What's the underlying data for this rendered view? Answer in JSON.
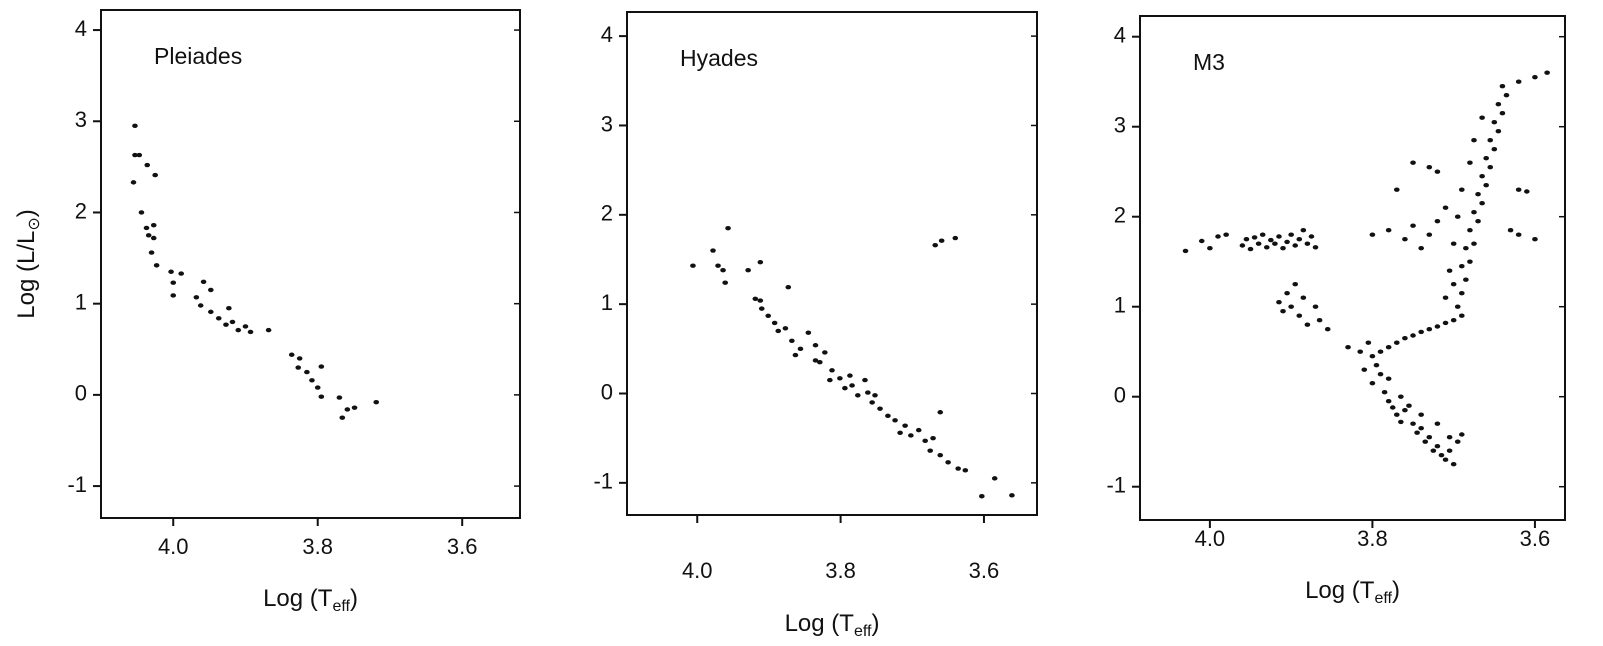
{
  "chart_data": [
    {
      "type": "scatter",
      "title": "Pleiades",
      "x_label": [
        "Log (T",
        "eff",
        ")"
      ],
      "y_label": [
        "Log (L/L",
        "⊙",
        ")"
      ],
      "xlim": [
        4.1,
        3.52
      ],
      "ylim": [
        -1.35,
        4.22
      ],
      "xticks": [
        {
          "value": 4.0,
          "label": "4.0"
        },
        {
          "value": 3.8,
          "label": "3.8"
        },
        {
          "value": 3.6,
          "label": "3.6"
        }
      ],
      "yticks": [
        4,
        3,
        2,
        1,
        0,
        -1
      ],
      "color": "#111111",
      "x": [
        4.053,
        4.053,
        4.047,
        4.055,
        4.036,
        4.025,
        4.044,
        4.037,
        4.027,
        4.034,
        4.027,
        4.03,
        4.023,
        4.003,
        3.989,
        4.0,
        4.0,
        3.958,
        3.948,
        3.968,
        3.962,
        3.923,
        3.948,
        3.937,
        3.927,
        3.918,
        3.91,
        3.9,
        3.893,
        3.868,
        3.836,
        3.825,
        3.827,
        3.815,
        3.795,
        3.808,
        3.8,
        3.795,
        3.77,
        3.759,
        3.749,
        3.766,
        3.719
      ],
      "y": [
        2.95,
        2.63,
        2.63,
        2.33,
        2.52,
        2.41,
        2.0,
        1.83,
        1.86,
        1.75,
        1.72,
        1.56,
        1.42,
        1.35,
        1.33,
        1.23,
        1.09,
        1.24,
        1.15,
        1.07,
        0.98,
        0.95,
        0.91,
        0.84,
        0.77,
        0.8,
        0.71,
        0.75,
        0.69,
        0.71,
        0.44,
        0.4,
        0.3,
        0.25,
        0.31,
        0.16,
        0.08,
        -0.02,
        -0.03,
        -0.16,
        -0.14,
        -0.25,
        -0.08
      ]
    },
    {
      "type": "scatter",
      "title": "Hyades",
      "x_label": [
        "Log (T",
        "eff",
        ")"
      ],
      "xlim": [
        4.098,
        3.526
      ],
      "ylim": [
        -1.36,
        4.27
      ],
      "xticks": [
        {
          "value": 4.0,
          "label": "4.0"
        },
        {
          "value": 3.8,
          "label": "3.8"
        },
        {
          "value": 3.6,
          "label": "3.6"
        }
      ],
      "yticks": [
        4,
        3,
        2,
        1,
        0,
        -1
      ],
      "color": "#111111",
      "x": [
        4.006,
        3.978,
        3.971,
        3.964,
        3.957,
        3.961,
        3.929,
        3.912,
        3.873,
        3.919,
        3.91,
        3.901,
        3.892,
        3.877,
        3.868,
        3.856,
        3.845,
        3.835,
        3.822,
        3.829,
        3.812,
        3.801,
        3.794,
        3.784,
        3.776,
        3.766,
        3.762,
        3.756,
        3.745,
        3.734,
        3.724,
        3.71,
        3.702,
        3.691,
        3.682,
        3.675,
        3.661,
        3.65,
        3.636,
        3.626,
        3.661,
        3.671,
        3.668,
        3.659,
        3.64,
        3.603,
        3.585,
        3.561,
        3.912,
        3.887,
        3.863,
        3.835,
        3.815,
        3.787,
        3.752,
        3.717
      ],
      "y": [
        1.43,
        1.6,
        1.43,
        1.38,
        1.85,
        1.24,
        1.38,
        1.47,
        1.19,
        1.06,
        0.95,
        0.87,
        0.79,
        0.73,
        0.59,
        0.5,
        0.68,
        0.54,
        0.46,
        0.35,
        0.26,
        0.17,
        0.06,
        0.09,
        -0.02,
        0.15,
        0.01,
        -0.1,
        -0.17,
        -0.25,
        -0.3,
        -0.36,
        -0.47,
        -0.41,
        -0.53,
        -0.64,
        -0.69,
        -0.77,
        -0.84,
        -0.86,
        -0.21,
        -0.5,
        1.66,
        1.71,
        1.74,
        -1.15,
        -0.95,
        -1.14,
        1.04,
        0.7,
        0.43,
        0.37,
        0.15,
        0.2,
        -0.02,
        -0.44
      ]
    },
    {
      "type": "scatter",
      "title": "M3",
      "x_label": [
        "Log (T",
        "eff",
        ")"
      ],
      "xlim": [
        4.086,
        3.563
      ],
      "ylim": [
        -1.37,
        4.23
      ],
      "xticks": [
        {
          "value": 4.0,
          "label": "4.0"
        },
        {
          "value": 3.8,
          "label": "3.8"
        },
        {
          "value": 3.6,
          "label": "3.6"
        }
      ],
      "yticks": [
        4,
        3,
        2,
        1,
        0,
        -1
      ],
      "color": "#111111",
      "x": [
        4.03,
        4.01,
        4.0,
        3.99,
        3.98,
        3.96,
        3.955,
        3.95,
        3.945,
        3.94,
        3.935,
        3.93,
        3.925,
        3.92,
        3.915,
        3.91,
        3.905,
        3.9,
        3.895,
        3.89,
        3.885,
        3.88,
        3.875,
        3.87,
        3.915,
        3.91,
        3.905,
        3.9,
        3.895,
        3.89,
        3.885,
        3.88,
        3.87,
        3.865,
        3.855,
        3.8,
        3.795,
        3.79,
        3.8,
        3.785,
        3.78,
        3.775,
        3.77,
        3.765,
        3.76,
        3.75,
        3.745,
        3.74,
        3.735,
        3.73,
        3.725,
        3.72,
        3.715,
        3.71,
        3.705,
        3.7,
        3.695,
        3.81,
        3.815,
        3.78,
        3.765,
        3.755,
        3.74,
        3.72,
        3.705,
        3.69,
        3.83,
        3.805,
        3.79,
        3.78,
        3.77,
        3.76,
        3.75,
        3.74,
        3.73,
        3.72,
        3.71,
        3.7,
        3.69,
        3.695,
        3.69,
        3.7,
        3.685,
        3.69,
        3.68,
        3.685,
        3.675,
        3.68,
        3.67,
        3.675,
        3.665,
        3.67,
        3.66,
        3.665,
        3.655,
        3.66,
        3.65,
        3.655,
        3.645,
        3.65,
        3.64,
        3.645,
        3.635,
        3.64,
        3.62,
        3.6,
        3.585,
        3.71,
        3.705,
        3.7,
        3.695,
        3.69,
        3.68,
        3.675,
        3.665,
        3.8,
        3.78,
        3.76,
        3.75,
        3.74,
        3.73,
        3.72,
        3.71,
        3.63,
        3.62,
        3.6,
        3.72,
        3.73,
        3.77,
        3.75,
        3.62,
        3.61
      ],
      "y": [
        1.62,
        1.73,
        1.65,
        1.78,
        1.8,
        1.68,
        1.75,
        1.64,
        1.77,
        1.7,
        1.8,
        1.66,
        1.74,
        1.7,
        1.78,
        1.65,
        1.72,
        1.8,
        1.68,
        1.75,
        1.85,
        1.7,
        1.78,
        1.66,
        1.05,
        0.95,
        1.15,
        1.0,
        1.25,
        0.9,
        1.1,
        0.8,
        1.0,
        0.85,
        0.75,
        0.45,
        0.35,
        0.25,
        0.15,
        0.05,
        -0.05,
        -0.12,
        -0.2,
        -0.28,
        -0.15,
        -0.3,
        -0.4,
        -0.35,
        -0.5,
        -0.45,
        -0.6,
        -0.55,
        -0.65,
        -0.7,
        -0.6,
        -0.75,
        -0.5,
        0.3,
        0.5,
        0.2,
        0.0,
        -0.1,
        -0.2,
        -0.3,
        -0.45,
        -0.42,
        0.55,
        0.6,
        0.5,
        0.55,
        0.6,
        0.65,
        0.68,
        0.72,
        0.75,
        0.78,
        0.82,
        0.85,
        0.9,
        1.0,
        1.15,
        1.25,
        1.3,
        1.45,
        1.5,
        1.65,
        1.7,
        1.85,
        1.95,
        2.05,
        2.15,
        2.25,
        2.35,
        2.45,
        2.55,
        2.65,
        2.75,
        2.85,
        2.95,
        3.05,
        3.15,
        3.25,
        3.35,
        3.45,
        3.5,
        3.55,
        3.6,
        1.1,
        1.4,
        1.7,
        2.0,
        2.3,
        2.6,
        2.85,
        3.1,
        1.8,
        1.85,
        1.75,
        1.9,
        1.65,
        1.8,
        1.95,
        2.1,
        1.85,
        1.8,
        1.75,
        2.5,
        2.55,
        2.3,
        2.6,
        2.3,
        2.28
      ]
    }
  ]
}
